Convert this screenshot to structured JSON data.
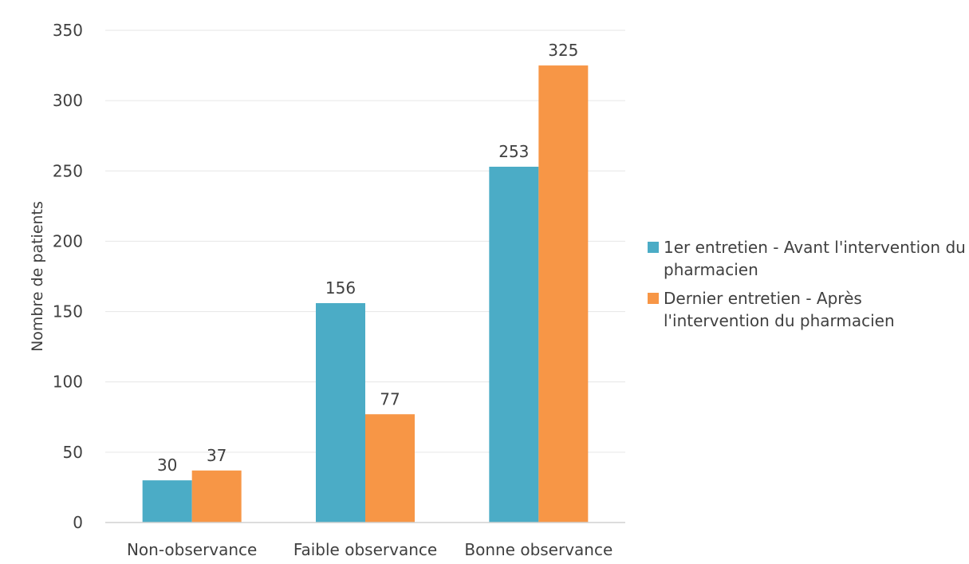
{
  "chart_data": {
    "type": "bar",
    "categories": [
      "Non-observance",
      "Faible observance",
      "Bonne observance"
    ],
    "series": [
      {
        "name": "1er entretien - Avant l'intervention du pharmacien",
        "values": [
          30,
          156,
          253
        ],
        "color": "#4BACC6"
      },
      {
        "name": "Dernier entretien - Après l'intervention du pharmacien",
        "values": [
          37,
          77,
          325
        ],
        "color": "#F79646"
      }
    ],
    "ylabel": "Nombre de patients",
    "xlabel": "",
    "ylim": [
      0,
      350
    ],
    "yticks": [
      0,
      50,
      100,
      150,
      200,
      250,
      300,
      350
    ],
    "grid": true,
    "legend_position": "right",
    "gridline_color": "#E6E6E6"
  }
}
